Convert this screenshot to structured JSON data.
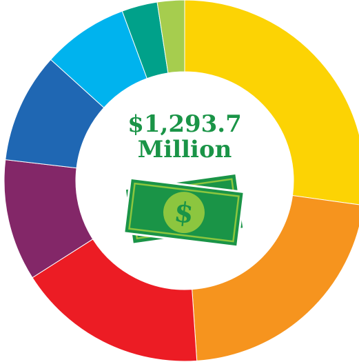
{
  "chart_data": {
    "type": "donut",
    "center": {
      "amount": "$1,293.7",
      "unit": "Million"
    },
    "slices": [
      {
        "value": 29.0,
        "color": "#fcd304"
      },
      {
        "value": 23.2,
        "color": "#f6941e"
      },
      {
        "value": 18.2,
        "color": "#ec1c24"
      },
      {
        "value": 11.6,
        "color": "#832768"
      },
      {
        "value": 10.5,
        "color": "#1f67b3"
      },
      {
        "value": 8.2,
        "color": "#00b3ee"
      },
      {
        "value": 3.4,
        "color": "#00a18a"
      },
      {
        "value": 2.6,
        "color": "#a6cd4e"
      }
    ]
  },
  "icon": "money-bills-icon",
  "colors": {
    "accent": "#1a9447",
    "bill": "#1a9447",
    "bill_light": "#8cc63f"
  }
}
